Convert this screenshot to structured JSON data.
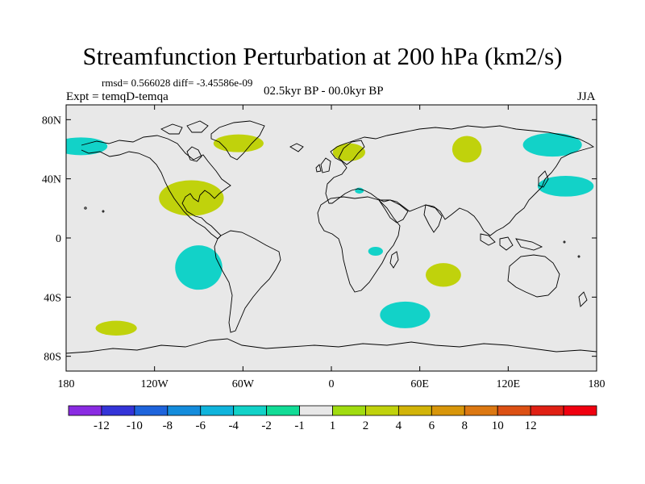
{
  "title": "Streamfunction Perturbation at 200 hPa (km2/s)",
  "stats": "rmsd= 0.566028 diff= -3.45586e-09",
  "period": "02.5kyr BP - 00.0kyr BP",
  "experiment": "Expt = temqD-temqa",
  "season": "JJA",
  "map": {
    "ocean_color": "#e8e8e8",
    "x_ticks": [
      "180",
      "120W",
      "60W",
      "0",
      "60E",
      "120E",
      "180"
    ],
    "x_tick_values": [
      -180,
      -120,
      -60,
      0,
      60,
      120,
      180
    ],
    "y_ticks": [
      "80N",
      "40N",
      "0",
      "40S",
      "80S"
    ],
    "y_tick_values": [
      80,
      40,
      0,
      -40,
      -80
    ],
    "anomalies": [
      {
        "name": "north-atlantic-west",
        "lon": -170,
        "lat": 62,
        "rlon": 18,
        "rlat": 6,
        "level": -2
      },
      {
        "name": "greenland",
        "lon": -63,
        "lat": 64,
        "rlon": 17,
        "rlat": 6,
        "level": 2
      },
      {
        "name": "scandinavia",
        "lon": 12,
        "lat": 58,
        "rlon": 11,
        "rlat": 6,
        "level": 2
      },
      {
        "name": "siberia",
        "lon": 92,
        "lat": 60,
        "rlon": 10,
        "rlat": 9,
        "level": 2
      },
      {
        "name": "northeast-asia",
        "lon": 150,
        "lat": 63,
        "rlon": 20,
        "rlat": 8,
        "level": -2
      },
      {
        "name": "northwest-pacific",
        "lon": 159,
        "lat": 35,
        "rlon": 19,
        "rlat": 7,
        "level": -2
      },
      {
        "name": "north-america",
        "lon": -95,
        "lat": 27,
        "rlon": 22,
        "rlat": 12,
        "level": 2
      },
      {
        "name": "mediterranean",
        "lon": 19,
        "lat": 32,
        "rlon": 3,
        "rlat": 2,
        "level": -2
      },
      {
        "name": "south-pacific-east",
        "lon": -90,
        "lat": -20,
        "rlon": 16,
        "rlat": 15,
        "level": -2
      },
      {
        "name": "central-africa",
        "lon": 30,
        "lat": -9,
        "rlon": 5,
        "rlat": 3,
        "level": -2
      },
      {
        "name": "indian-ocean",
        "lon": 76,
        "lat": -25,
        "rlon": 12,
        "rlat": 8,
        "level": 2
      },
      {
        "name": "southern-ocean",
        "lon": 50,
        "lat": -52,
        "rlon": 17,
        "rlat": 9,
        "level": -2
      },
      {
        "name": "south-pacific-west",
        "lon": -146,
        "lat": -61,
        "rlon": 14,
        "rlat": 5,
        "level": 2
      }
    ]
  },
  "colorbar": {
    "colors": [
      "#8a2be2",
      "#3434d8",
      "#1e64dc",
      "#148cdc",
      "#10b4dc",
      "#12d2c8",
      "#12dc96",
      "#e8e8e8",
      "#a0dc10",
      "#c0d20c",
      "#d2b408",
      "#d8960a",
      "#dc7812",
      "#dc5014",
      "#e02014",
      "#f00010"
    ],
    "labels": [
      "-12",
      "-10",
      "-8",
      "-6",
      "-4",
      "-2",
      "-1",
      "1",
      "2",
      "4",
      "6",
      "8",
      "10",
      "12"
    ]
  }
}
